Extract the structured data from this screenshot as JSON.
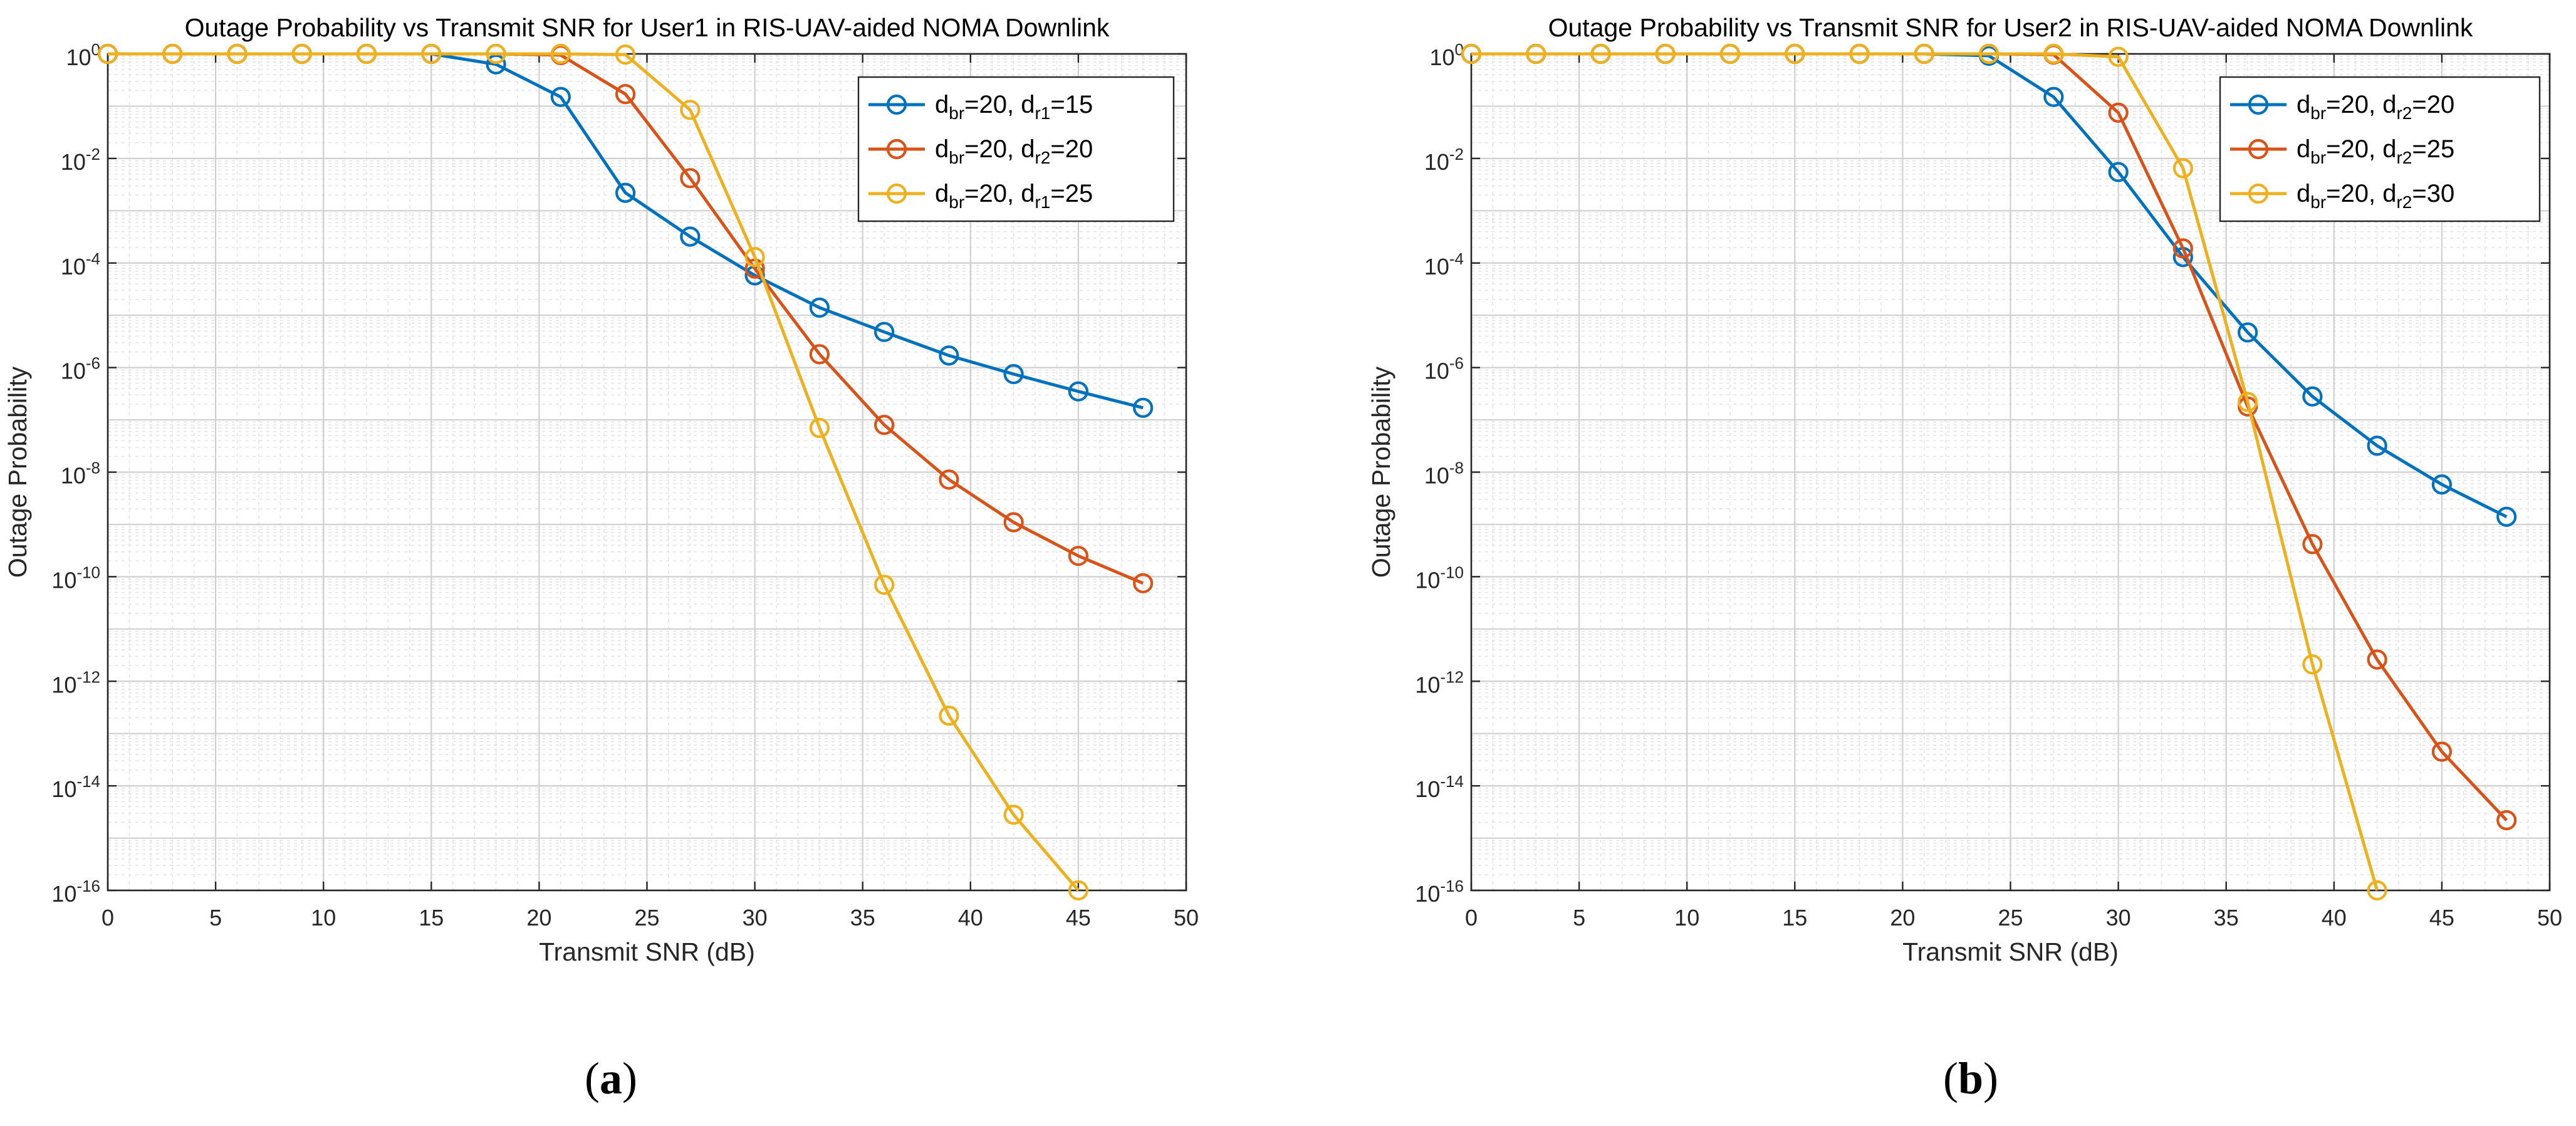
{
  "colors": {
    "series": [
      "#0072BD",
      "#D95319",
      "#EDB120"
    ],
    "major_grid": "#cfcfcf",
    "minor_grid": "#e4e4e4",
    "axis": "#262626",
    "text": "#262626"
  },
  "chart_data": [
    {
      "type": "line",
      "title": "Outage Probability vs Transmit SNR for User1 in RIS-UAV-aided NOMA Downlink",
      "xlabel": "Transmit SNR (dB)",
      "ylabel": "Outage Probability",
      "xlim": [
        0,
        50
      ],
      "ylim": [
        1e-16,
        1
      ],
      "yscale": "log",
      "grid": true,
      "minor_grid": true,
      "legend_position": "top-right",
      "xticks": [
        "0",
        "5",
        "10",
        "15",
        "20",
        "25",
        "30",
        "35",
        "40",
        "45",
        "50"
      ],
      "yticks": [
        {
          "base": "10",
          "exp": "0"
        },
        {
          "base": "10",
          "exp": "-2"
        },
        {
          "base": "10",
          "exp": "-4"
        },
        {
          "base": "10",
          "exp": "-6"
        },
        {
          "base": "10",
          "exp": "-8"
        },
        {
          "base": "10",
          "exp": "-10"
        },
        {
          "base": "10",
          "exp": "-12"
        },
        {
          "base": "10",
          "exp": "-14"
        },
        {
          "base": "10",
          "exp": "-16"
        }
      ],
      "caption": {
        "open": "(",
        "letter": "a",
        "close": ")"
      },
      "series": [
        {
          "label": {
            "a": "d",
            "a_sub": "br",
            "b": "=20, d",
            "b_sub": "r1",
            "c": "=15"
          },
          "x": [
            0,
            3,
            6,
            9,
            12,
            15,
            18,
            21,
            24,
            27,
            30,
            33,
            36,
            39,
            42,
            45,
            48
          ],
          "y": [
            1,
            1,
            1,
            1,
            1,
            1,
            0.63,
            0.15,
            0.0022,
            0.00032,
            5.8e-05,
            1.4e-05,
            4.8e-06,
            1.7e-06,
            7.5e-07,
            3.5e-07,
            1.7e-07
          ]
        },
        {
          "label": {
            "a": "d",
            "a_sub": "br",
            "b": "=20, d",
            "b_sub": "r2",
            "c": "=20"
          },
          "x": [
            0,
            3,
            6,
            9,
            12,
            15,
            18,
            21,
            24,
            27,
            30,
            33,
            36,
            39,
            42,
            45,
            48
          ],
          "y": [
            1,
            1,
            1,
            1,
            1,
            1,
            1,
            0.95,
            0.17,
            0.0042,
            7.8e-05,
            1.8e-06,
            8e-08,
            7.2e-09,
            1.1e-09,
            2.5e-10,
            7.5e-11
          ]
        },
        {
          "label": {
            "a": "d",
            "a_sub": "br",
            "b": "=20, d",
            "b_sub": "r1",
            "c": "=25"
          },
          "x": [
            0,
            3,
            6,
            9,
            12,
            15,
            18,
            21,
            24,
            27,
            30,
            33,
            36,
            39,
            42,
            45
          ],
          "y": [
            1,
            1,
            1,
            1,
            1,
            1,
            1,
            1,
            0.97,
            0.085,
            0.00013,
            7e-08,
            7e-11,
            2.2e-13,
            2.8e-15,
            1e-16
          ]
        }
      ]
    },
    {
      "type": "line",
      "title": "Outage Probability vs Transmit SNR for User2 in RIS-UAV-aided NOMA Downlink",
      "xlabel": "Transmit SNR (dB)",
      "ylabel": "Outage Probability",
      "xlim": [
        0,
        50
      ],
      "ylim": [
        1e-16,
        1
      ],
      "yscale": "log",
      "grid": true,
      "minor_grid": true,
      "legend_position": "top-right",
      "xticks": [
        "0",
        "5",
        "10",
        "15",
        "20",
        "25",
        "30",
        "35",
        "40",
        "45",
        "50"
      ],
      "yticks": [
        {
          "base": "10",
          "exp": "0"
        },
        {
          "base": "10",
          "exp": "-2"
        },
        {
          "base": "10",
          "exp": "-4"
        },
        {
          "base": "10",
          "exp": "-6"
        },
        {
          "base": "10",
          "exp": "-8"
        },
        {
          "base": "10",
          "exp": "-10"
        },
        {
          "base": "10",
          "exp": "-12"
        },
        {
          "base": "10",
          "exp": "-14"
        },
        {
          "base": "10",
          "exp": "-16"
        }
      ],
      "caption": {
        "open": "(",
        "letter": "b",
        "close": ")"
      },
      "series": [
        {
          "label": {
            "a": "d",
            "a_sub": "br",
            "b": "=20, d",
            "b_sub": "r2",
            "c": "=20"
          },
          "x": [
            0,
            3,
            6,
            9,
            12,
            15,
            18,
            21,
            24,
            27,
            30,
            33,
            36,
            39,
            42,
            45,
            48
          ],
          "y": [
            1,
            1,
            1,
            1,
            1,
            1,
            1,
            1,
            0.92,
            0.15,
            0.0055,
            0.00013,
            4.7e-06,
            2.8e-07,
            3.2e-08,
            5.8e-09,
            1.4e-09
          ]
        },
        {
          "label": {
            "a": "d",
            "a_sub": "br",
            "b": "=20, d",
            "b_sub": "r2",
            "c": "=25"
          },
          "x": [
            0,
            3,
            6,
            9,
            12,
            15,
            18,
            21,
            24,
            27,
            30,
            33,
            36,
            39,
            42,
            45,
            48
          ],
          "y": [
            1,
            1,
            1,
            1,
            1,
            1,
            1,
            1,
            1,
            0.97,
            0.075,
            0.00019,
            1.8e-07,
            4.2e-10,
            2.6e-12,
            4.5e-14,
            2.2e-15
          ]
        },
        {
          "label": {
            "a": "d",
            "a_sub": "br",
            "b": "=20, d",
            "b_sub": "r2",
            "c": "=30"
          },
          "x": [
            0,
            3,
            6,
            9,
            12,
            15,
            18,
            21,
            24,
            27,
            30,
            33,
            36,
            39,
            42
          ],
          "y": [
            1,
            1,
            1,
            1,
            1,
            1,
            1,
            1,
            1,
            1,
            0.88,
            0.0065,
            2.2e-07,
            2.1e-12,
            1e-16
          ]
        }
      ]
    }
  ]
}
